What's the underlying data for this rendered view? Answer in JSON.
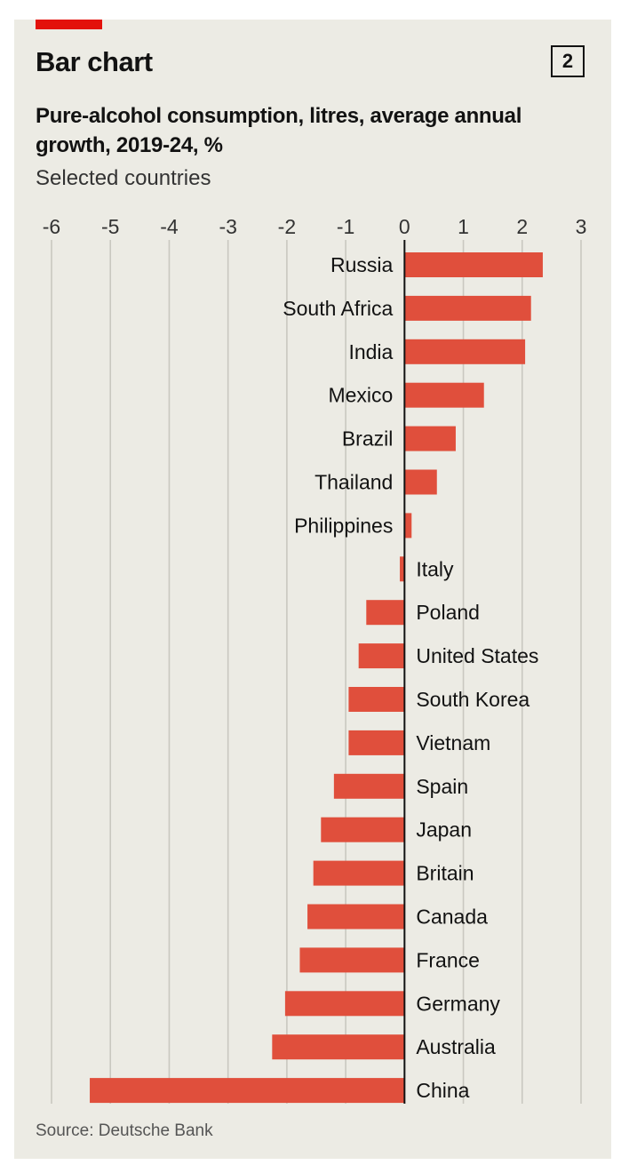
{
  "header": {
    "title": "Bar chart",
    "badge": "2",
    "subtitle": "Pure-alcohol consumption, litres, average annual growth, 2019-24, %",
    "note": "Selected countries",
    "source": "Source: Deutsche Bank"
  },
  "colors": {
    "bar": "#e04f3c",
    "brand_red": "#e3120b",
    "background": "#ecebe4",
    "grid": "#c9c8c0",
    "zero_axis": "#121212"
  },
  "chart_data": {
    "type": "bar",
    "orientation": "horizontal",
    "title": "Pure-alcohol consumption, litres, average annual growth, 2019-24, %",
    "subtitle": "Selected countries",
    "xlabel": "",
    "ylabel": "",
    "xlim": [
      -6,
      3
    ],
    "ticks": [
      -6,
      -5,
      -4,
      -3,
      -2,
      -1,
      0,
      1,
      2,
      3
    ],
    "categories": [
      "Russia",
      "South Africa",
      "India",
      "Mexico",
      "Brazil",
      "Thailand",
      "Philippines",
      "Italy",
      "Poland",
      "United States",
      "South Korea",
      "Vietnam",
      "Spain",
      "Japan",
      "Britain",
      "Canada",
      "France",
      "Germany",
      "Australia",
      "China"
    ],
    "values": [
      2.35,
      2.15,
      2.05,
      1.35,
      0.87,
      0.55,
      0.12,
      -0.08,
      -0.65,
      -0.78,
      -0.95,
      -0.95,
      -1.2,
      -1.42,
      -1.55,
      -1.65,
      -1.78,
      -2.03,
      -2.25,
      -5.35
    ],
    "source": "Deutsche Bank"
  }
}
